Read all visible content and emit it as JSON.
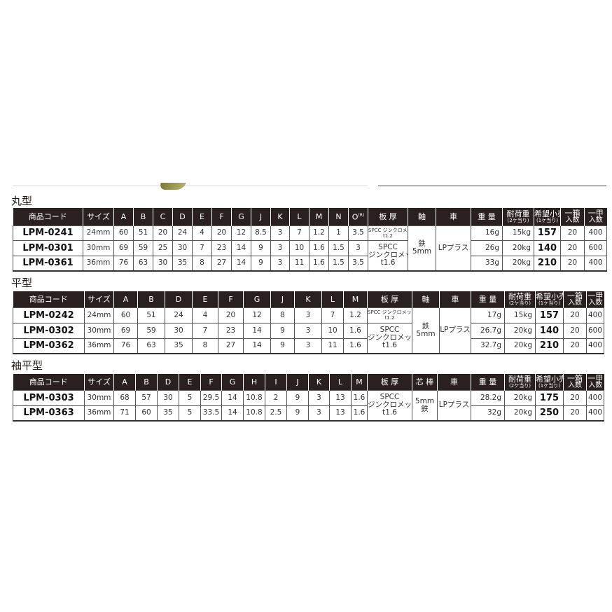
{
  "tables": [
    {
      "title": "丸型",
      "headers": [
        "商品コード",
        "サイズ",
        "A",
        "B",
        "C",
        "D",
        "E",
        "F",
        "G",
        "J",
        "K",
        "L",
        "M",
        "N",
        {
          "main": "O",
          "sup": "(R)"
        },
        "板 厚",
        "軸",
        "車",
        "重 量",
        {
          "main": "耐荷重",
          "sub": "(2ケ当り)"
        },
        {
          "main": "希望小売価格",
          "sub": "(1ケ当り)"
        },
        {
          "main": "一箱",
          "l2": "入数"
        },
        {
          "main": "一甲",
          "l2": "入数"
        }
      ],
      "rows": [
        {
          "code": "LPM-0241",
          "size": "24mm",
          "dims": [
            "60",
            "51",
            "20",
            "24",
            "4",
            "20",
            "12",
            "8.5",
            "3",
            "7",
            "1.2",
            "1",
            "3.5"
          ],
          "weight": "16g",
          "load": "15kg",
          "price": "157",
          "box": "20",
          "case": "400"
        },
        {
          "code": "LPM-0301",
          "size": "30mm",
          "dims": [
            "69",
            "59",
            "25",
            "30",
            "7",
            "23",
            "14",
            "9",
            "3",
            "10",
            "1.6",
            "1.5",
            "3"
          ],
          "weight": "26g",
          "load": "20kg",
          "price": "140",
          "box": "20",
          "case": "600"
        },
        {
          "code": "LPM-0361",
          "size": "36mm",
          "dims": [
            "76",
            "63",
            "30",
            "35",
            "8",
            "27",
            "14",
            "9",
            "3",
            "11",
            "1.6",
            "1.5",
            "3.5"
          ],
          "weight": "33g",
          "load": "20kg",
          "price": "210",
          "box": "20",
          "case": "400"
        }
      ],
      "thickness": [
        {
          "small": [
            "SPCC ジンクロメッキ",
            "t1.2"
          ]
        },
        {
          "lines": [
            "SPCC",
            "ジンクロメッキ",
            "t1.6"
          ]
        }
      ],
      "shaft": [
        "鉄",
        "5mm"
      ],
      "wheel": "LPプラス"
    },
    {
      "title": "平型",
      "headers": [
        "商品コード",
        "サイズ",
        "A",
        "B",
        "D",
        "E",
        "F",
        "G",
        "J",
        "K",
        "L",
        "M",
        "板 厚",
        "軸",
        "車",
        "重 量",
        {
          "main": "耐荷重",
          "sub": "(2ケ当り)"
        },
        {
          "main": "希望小売価格",
          "sub": "(1ケ当り)"
        },
        {
          "main": "一箱",
          "l2": "入数"
        },
        {
          "main": "一甲",
          "l2": "入数"
        }
      ],
      "rows": [
        {
          "code": "LPM-0242",
          "size": "24mm",
          "dims": [
            "60",
            "51",
            "24",
            "4",
            "20",
            "12",
            "8",
            "3",
            "7",
            "1.2"
          ],
          "weight": "17g",
          "load": "15kg",
          "price": "157",
          "box": "20",
          "case": "400"
        },
        {
          "code": "LPM-0302",
          "size": "30mm",
          "dims": [
            "69",
            "59",
            "30",
            "7",
            "23",
            "14",
            "9",
            "3",
            "10",
            "1.6"
          ],
          "weight": "26.7g",
          "load": "20kg",
          "price": "140",
          "box": "20",
          "case": "600"
        },
        {
          "code": "LPM-0362",
          "size": "36mm",
          "dims": [
            "76",
            "63",
            "35",
            "8",
            "27",
            "14",
            "9",
            "3",
            "11",
            "1.6"
          ],
          "weight": "32.7g",
          "load": "20kg",
          "price": "210",
          "box": "20",
          "case": "400"
        }
      ],
      "thickness": [
        {
          "small": [
            "SPCC ジンクロメッキ",
            "t1.2"
          ]
        },
        {
          "lines": [
            "SPCC",
            "ジンクロメッキ",
            "t1.6"
          ]
        }
      ],
      "shaft": [
        "鉄",
        "5mm"
      ],
      "wheel": "LPプラス"
    },
    {
      "title": "袖平型",
      "headers": [
        "商品コード",
        "サイズ",
        "A",
        "B",
        "D",
        "E",
        "F",
        "G",
        "H",
        "I",
        "J",
        "K",
        "L",
        "M",
        "板 厚",
        "芯 棒",
        "車",
        "重 量",
        {
          "main": "耐荷重",
          "sub": "(2ケ当り)"
        },
        {
          "main": "希望小売価格",
          "sub": "(1ケ当り)"
        },
        {
          "main": "一箱",
          "l2": "入数"
        },
        {
          "main": "一甲",
          "l2": "入数"
        }
      ],
      "rows": [
        {
          "code": "LPM-0303",
          "size": "30mm",
          "dims": [
            "68",
            "57",
            "30",
            "5",
            "29.5",
            "14",
            "10.8",
            "2",
            "9",
            "3",
            "13",
            "1.6"
          ],
          "weight": "28.2g",
          "load": "20kg",
          "price": "175",
          "box": "20",
          "case": "400"
        },
        {
          "code": "LPM-0363",
          "size": "36mm",
          "dims": [
            "71",
            "60",
            "35",
            "5",
            "33.5",
            "14",
            "10.8",
            "2.5",
            "9",
            "3",
            "13",
            "1.6"
          ],
          "weight": "32g",
          "load": "20kg",
          "price": "250",
          "box": "20",
          "case": "400"
        }
      ],
      "thickness": [
        {
          "lines": [
            "SPCC",
            "ジンクロメッキ",
            "t1.6"
          ]
        }
      ],
      "shaft": [
        "5mm",
        "鉄"
      ],
      "wheel": "LPプラス"
    }
  ]
}
